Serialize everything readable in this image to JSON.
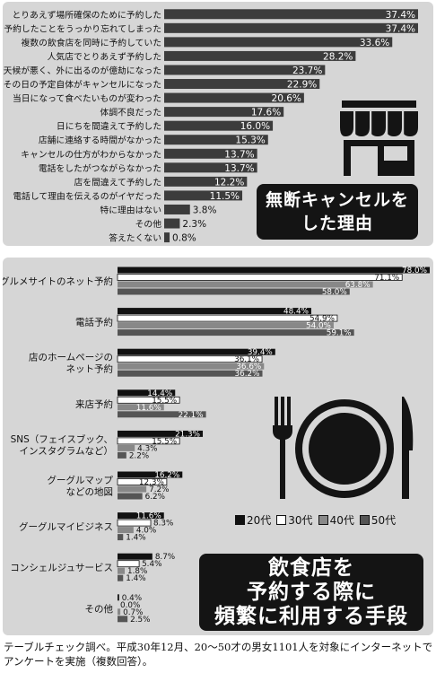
{
  "colors": {
    "bar": "#3c3c3c",
    "s20": "#111111",
    "s30": "#ffffff",
    "s40": "#888888",
    "s50": "#555555",
    "panel": "#d6d6d6"
  },
  "reasons_title": [
    "無断キャンセルを",
    "した理由"
  ],
  "methods_title": [
    "飲食店を",
    "予約する際に",
    "頻繁に利用する手段"
  ],
  "footnote": "テーブルチェック調べ。平成30年12月、20〜50才の男女1101人を対象にインターネットでアンケートを実施（複数回答）。",
  "icons": {
    "shop": "storefront-icon",
    "dining": "fork-plate-knife-icon"
  },
  "chart_data": [
    {
      "type": "bar",
      "orientation": "horizontal",
      "title": "無断キャンセルをした理由",
      "unit": "%",
      "xlim": [
        0,
        40
      ],
      "categories": [
        "とりあえず場所確保のために予約した",
        "予約したことをうっかり忘れてしまった",
        "複数の飲食店を同時に予約していた",
        "人気店でとりあえず予約した",
        "天候が悪く、外に出るのが億劫になった",
        "その日の予定自体がキャンセルになった",
        "当日になって食べたいものが変わった",
        "体調不良だった",
        "日にちを間違えて予約した",
        "店舗に連絡する時間がなかった",
        "キャンセルの仕方がわからなかった",
        "電話をしたがつながらなかった",
        "店を間違えて予約した",
        "電話して理由を伝えるのがイヤだった",
        "特に理由はない",
        "その他",
        "答えたくない"
      ],
      "values": [
        37.4,
        37.4,
        33.6,
        28.2,
        23.7,
        22.9,
        20.6,
        17.6,
        16.0,
        15.3,
        13.7,
        13.7,
        12.2,
        11.5,
        3.8,
        2.3,
        0.8
      ],
      "labels": [
        "37.4%",
        "37.4%",
        "33.6%",
        "28.2%",
        "23.7%",
        "22.9%",
        "20.6%",
        "17.6%",
        "16.0%",
        "15.3%",
        "13.7%",
        "13.7%",
        "12.2%",
        "11.5%",
        "3.8%",
        "2.3%",
        "0.8%"
      ]
    },
    {
      "type": "bar",
      "orientation": "horizontal",
      "grouped": true,
      "title": "飲食店を予約する際に頻繁に利用する手段",
      "unit": "%",
      "xlim": [
        0,
        80
      ],
      "legend": "bottom-right",
      "categories": [
        [
          "グルメサイトのネット予約"
        ],
        [
          "電話予約"
        ],
        [
          "店のホームページの",
          "ネット予約"
        ],
        [
          "来店予約"
        ],
        [
          "SNS（フェイスブック、",
          "インスタグラムなど）"
        ],
        [
          "グーグルマップ",
          "などの地図"
        ],
        [
          "グーグルマイビジネス"
        ],
        [
          "コンシェルジュサービス"
        ],
        [
          "その他"
        ]
      ],
      "series": [
        {
          "name": "20代",
          "values": [
            78.0,
            48.4,
            39.4,
            14.4,
            21.3,
            16.2,
            11.6,
            8.7,
            0.4
          ],
          "labels": [
            "78.0%",
            "48.4%",
            "39.4%",
            "14.4%",
            "21.3%",
            "16.2%",
            "11.6%",
            "8.7%",
            "0.4%"
          ]
        },
        {
          "name": "30代",
          "values": [
            71.1,
            54.9,
            36.1,
            15.5,
            15.5,
            12.3,
            8.3,
            5.4,
            0.0
          ],
          "labels": [
            "71.1%",
            "54.9%",
            "36.1%",
            "15.5%",
            "15.5%",
            "12.3%",
            "8.3%",
            "5.4%",
            "0.0%"
          ]
        },
        {
          "name": "40代",
          "values": [
            63.8,
            54.0,
            36.6,
            11.6,
            4.3,
            7.2,
            4.0,
            1.8,
            0.7
          ],
          "labels": [
            "63.8%",
            "54.0%",
            "36.6%",
            "11.6%",
            "4.3%",
            "7.2%",
            "4.0%",
            "1.8%",
            "0.7%"
          ]
        },
        {
          "name": "50代",
          "values": [
            58.0,
            59.1,
            36.2,
            22.1,
            2.2,
            6.2,
            1.4,
            1.4,
            2.5
          ],
          "labels": [
            "58.0%",
            "59.1%",
            "36.2%",
            "22.1%",
            "2.2%",
            "6.2%",
            "1.4%",
            "1.4%",
            "2.5%"
          ]
        }
      ]
    }
  ]
}
